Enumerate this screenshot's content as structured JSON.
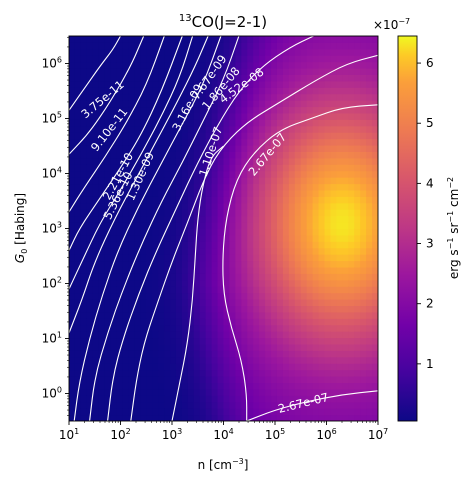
{
  "chart_data": {
    "type": "heatmap",
    "title_base": "CO(J=2-1)",
    "title_isotope": "13",
    "xlabel_main": "n [cm",
    "xlabel_exp": "−3",
    "xlabel_close": "]",
    "ylabel_sym": "G",
    "ylabel_sub": "0",
    "ylabel_rest": " [Habing]",
    "x_scale": "log",
    "y_scale": "log",
    "xlim_log10": [
      1,
      7
    ],
    "ylim_log10": [
      -0.5,
      6.5
    ],
    "x_ticks": [
      {
        "exp": 1,
        "base": "10",
        "label": "1"
      },
      {
        "exp": 2,
        "base": "10",
        "label": "2"
      },
      {
        "exp": 3,
        "base": "10",
        "label": "3"
      },
      {
        "exp": 4,
        "base": "10",
        "label": "4"
      },
      {
        "exp": 5,
        "base": "10",
        "label": "5"
      },
      {
        "exp": 6,
        "base": "10",
        "label": "6"
      },
      {
        "exp": 7,
        "base": "10",
        "label": "7"
      }
    ],
    "y_ticks": [
      {
        "exp": 0,
        "base": "10",
        "label": "0"
      },
      {
        "exp": 1,
        "base": "10",
        "label": "1"
      },
      {
        "exp": 2,
        "base": "10",
        "label": "2"
      },
      {
        "exp": 3,
        "base": "10",
        "label": "3"
      },
      {
        "exp": 4,
        "base": "10",
        "label": "4"
      },
      {
        "exp": 5,
        "base": "10",
        "label": "5"
      },
      {
        "exp": 6,
        "base": "10",
        "label": "6"
      }
    ],
    "colormap": "plasma",
    "colorbar": {
      "range": [
        0.05,
        6.45
      ],
      "ticks": [
        "1",
        "2",
        "3",
        "4",
        "5",
        "6"
      ],
      "ticks_values": [
        1,
        2,
        3,
        4,
        5,
        6
      ],
      "scale_base": "×10",
      "scale_exp": "−7",
      "label_parts": [
        "erg s",
        "−1",
        " sr",
        "−1",
        " cm",
        "−2"
      ]
    },
    "contour_levels": [
      "3.75e-11",
      "9.10e-11",
      "2.21e-10",
      "5.36e-10",
      "1.30e-09",
      "3.16e-09",
      "7.67e-09",
      "1.86e-08",
      "4.52e-08",
      "1.10e-07",
      "2.67e-07"
    ],
    "contour_labels": [
      {
        "text": "3.75e-11",
        "x": 1.65,
        "y": 5.35,
        "angle": -40
      },
      {
        "text": "9.10e-11",
        "x": 1.78,
        "y": 4.8,
        "angle": -52
      },
      {
        "text": "2.21e-10",
        "x": 1.95,
        "y": 3.95,
        "angle": -62
      },
      {
        "text": "5.36e-10",
        "x": 1.95,
        "y": 3.6,
        "angle": -64
      },
      {
        "text": "1.30e-09",
        "x": 2.38,
        "y": 3.95,
        "angle": -66
      },
      {
        "text": "3.16e-09",
        "x": 3.3,
        "y": 5.2,
        "angle": -62
      },
      {
        "text": "7.67e-09",
        "x": 3.72,
        "y": 5.75,
        "angle": -55
      },
      {
        "text": "1.86e-08",
        "x": 3.95,
        "y": 5.55,
        "angle": -50
      },
      {
        "text": "4.52e-08",
        "x": 4.35,
        "y": 5.6,
        "angle": -36
      },
      {
        "text": "1.10e-07",
        "x": 3.75,
        "y": 4.4,
        "angle": -72
      },
      {
        "text": "2.67e-07",
        "x": 4.85,
        "y": 4.35,
        "angle": -50
      },
      {
        "text": "2.67e-07",
        "x": 5.55,
        "y": -0.17,
        "angle": -14
      }
    ]
  }
}
